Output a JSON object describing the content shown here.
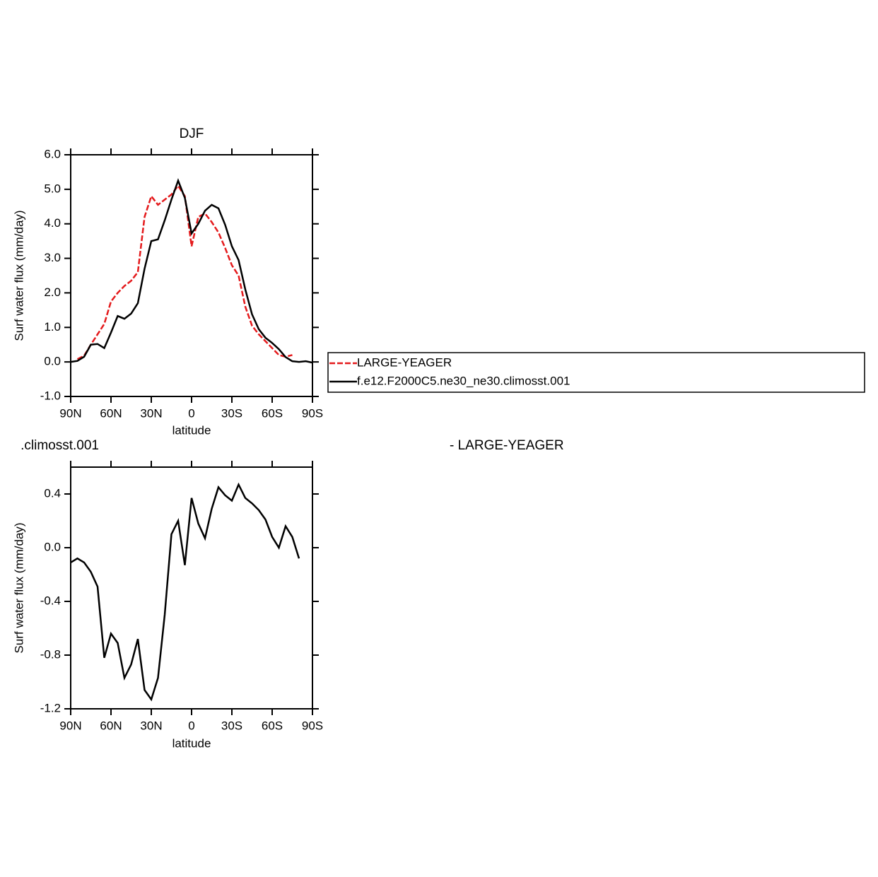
{
  "chart_data": [
    {
      "type": "line",
      "title": "DJF",
      "xlabel": "latitude",
      "ylabel": "Surf water flux (mm/day)",
      "xlim": [
        90,
        -90
      ],
      "xticks": [
        {
          "value": 90,
          "label": "90N"
        },
        {
          "value": 60,
          "label": "60N"
        },
        {
          "value": 30,
          "label": "30N"
        },
        0,
        {
          "value": -30,
          "label": "30S"
        },
        {
          "value": -60,
          "label": "60S"
        },
        {
          "value": -90,
          "label": "90S"
        }
      ],
      "ylim": [
        -1,
        6
      ],
      "yticks": [
        {
          "value": -1,
          "label": "-1.0"
        },
        {
          "value": 0,
          "label": "0.0"
        },
        {
          "value": 1,
          "label": "1.0"
        },
        {
          "value": 2,
          "label": "2.0"
        },
        {
          "value": 3,
          "label": "3.0"
        },
        {
          "value": 4,
          "label": "4.0"
        },
        {
          "value": 5,
          "label": "5.0"
        },
        {
          "value": 6,
          "label": "6.0"
        }
      ],
      "x": [
        90,
        85,
        80,
        75,
        70,
        65,
        60,
        55,
        50,
        45,
        40,
        35,
        30,
        25,
        20,
        15,
        10,
        5,
        0,
        -5,
        -10,
        -15,
        -20,
        -25,
        -30,
        -35,
        -40,
        -45,
        -50,
        -55,
        -60,
        -65,
        -70,
        -75,
        -80,
        -85,
        -90
      ],
      "series": [
        {
          "name": "LARGE-YEAGER",
          "color": "#e41a1c",
          "dash": true,
          "values": [
            null,
            0.08,
            0.18,
            0.5,
            0.8,
            1.1,
            1.75,
            2.0,
            2.2,
            2.35,
            2.6,
            4.2,
            4.8,
            4.55,
            4.7,
            4.85,
            5.1,
            4.8,
            3.35,
            4.2,
            4.3,
            4.05,
            3.75,
            3.3,
            2.8,
            2.5,
            1.6,
            1.05,
            0.8,
            0.6,
            0.4,
            0.2,
            0.15,
            0.2,
            null,
            null,
            null
          ]
        },
        {
          "name": "f.e12.F2000C5.ne30_ne30.climosst.001",
          "color": "#000000",
          "dash": false,
          "values": [
            0.0,
            0.03,
            0.15,
            0.5,
            0.52,
            0.4,
            0.85,
            1.33,
            1.25,
            1.4,
            1.7,
            2.7,
            3.5,
            3.55,
            4.1,
            4.7,
            5.25,
            4.75,
            3.72,
            4.0,
            4.38,
            4.55,
            4.45,
            3.97,
            3.35,
            2.95,
            2.1,
            1.38,
            0.95,
            0.7,
            0.55,
            0.37,
            0.14,
            0.02,
            0.0,
            0.02,
            -0.02
          ]
        }
      ]
    },
    {
      "type": "line",
      "title_left": ".climosst.001",
      "title_right": "- LARGE-YEAGER",
      "xlabel": "latitude",
      "ylabel": "Surf water flux (mm/day)",
      "xlim": [
        90,
        -90
      ],
      "xticks": [
        {
          "value": 90,
          "label": "90N"
        },
        {
          "value": 60,
          "label": "60N"
        },
        {
          "value": 30,
          "label": "30N"
        },
        0,
        {
          "value": -30,
          "label": "30S"
        },
        {
          "value": -60,
          "label": "60S"
        },
        {
          "value": -90,
          "label": "90S"
        }
      ],
      "ylim": [
        -1.2,
        0.6
      ],
      "yticks": [
        -1.2,
        -0.8,
        -0.4,
        {
          "value": 0,
          "label": "0.0"
        },
        0.4
      ],
      "x": [
        90,
        85,
        80,
        75,
        70,
        65,
        60,
        55,
        50,
        45,
        40,
        35,
        30,
        25,
        20,
        15,
        10,
        5,
        0,
        -5,
        -10,
        -15,
        -20,
        -25,
        -30,
        -35,
        -40,
        -45,
        -50,
        -55,
        -60,
        -65,
        -70,
        -75,
        -80,
        -85,
        -90
      ],
      "series": [
        {
          "color": "#000000",
          "dash": false,
          "values": [
            -0.11,
            -0.08,
            -0.11,
            -0.18,
            -0.29,
            -0.82,
            -0.64,
            -0.71,
            -0.97,
            -0.87,
            -0.68,
            -1.06,
            -1.13,
            -0.97,
            -0.5,
            0.1,
            0.2,
            -0.13,
            0.37,
            0.18,
            0.07,
            0.29,
            0.45,
            0.39,
            0.35,
            0.47,
            0.37,
            0.33,
            0.28,
            0.21,
            0.08,
            0.0,
            0.16,
            0.08,
            -0.08,
            null,
            null
          ]
        }
      ]
    }
  ]
}
